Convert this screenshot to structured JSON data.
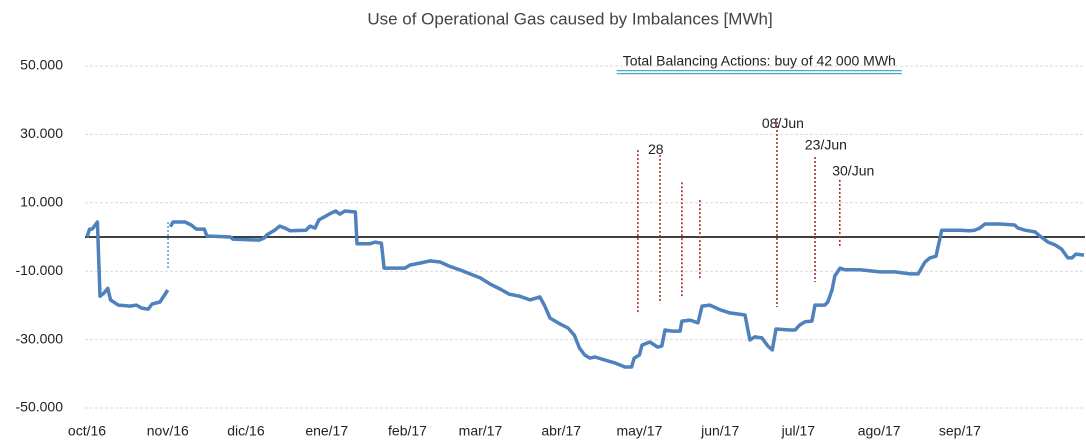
{
  "chart_data": {
    "type": "line",
    "title": "Use of Operational Gas caused by Imbalances [MWh]",
    "color": "#4f81bd",
    "x": [
      0,
      1,
      2,
      4,
      5,
      6.5,
      8,
      9,
      12,
      16.5,
      19,
      21,
      23.5,
      25,
      28,
      31,
      31.5,
      32,
      33,
      37.6,
      40,
      42,
      45,
      46,
      55,
      56,
      66,
      68,
      69,
      72,
      74,
      76,
      78,
      84,
      85.6,
      87.5,
      89,
      93,
      95.5,
      97,
      99,
      103,
      103.6,
      108.6,
      110.5,
      113,
      114,
      122,
      124,
      128,
      131.6,
      135.5,
      139,
      143,
      147,
      151,
      154.6,
      158.5,
      162,
      166,
      170,
      173.8,
      175.7,
      177.7,
      181.5,
      184.6,
      187,
      189,
      191,
      193,
      195,
      198.8,
      202.6,
      206.4,
      209,
      210,
      212,
      213,
      216,
      219,
      220.6,
      221.8,
      224.5,
      227.6,
      228.3,
      231.4,
      234.5,
      236,
      239,
      243,
      246.7,
      252.5,
      254.4,
      256.3,
      259,
      261.3,
      263,
      264.4,
      269.8,
      271.7,
      273.6,
      275.5,
      278.2,
      279.4,
      283.2,
      284.3,
      285.9,
      287,
      289,
      290.9,
      296.6,
      304.3,
      310,
      315.8,
      319,
      321.6,
      323.5,
      325.8,
      328,
      335,
      338.8,
      340.7,
      342.6,
      344.6,
      350.3,
      356,
      357.3,
      360,
      363.8,
      365.7,
      368.8,
      371.5,
      374,
      376.4,
      378,
      379.5,
      382.6
    ],
    "values": [
      0,
      2300,
      2300,
      4400,
      -17300,
      -16400,
      -15000,
      -18400,
      -19900,
      -20200,
      -19900,
      -20800,
      -21100,
      -19600,
      -19000,
      -15500,
      null,
      3000,
      4400,
      4400,
      3500,
      2300,
      2300,
      300,
      0,
      -600,
      -900,
      -300,
      600,
      2000,
      3200,
      2600,
      1800,
      2000,
      3200,
      2600,
      5000,
      6700,
      7600,
      6700,
      7600,
      7300,
      -2000,
      -2000,
      -1500,
      -1800,
      -9100,
      -9100,
      -8200,
      -7600,
      -7000,
      -7300,
      -8500,
      -9600,
      -10800,
      -12000,
      -13700,
      -15200,
      -16700,
      -17300,
      -18400,
      -17500,
      -20200,
      -23700,
      -25400,
      -26600,
      -28700,
      -32500,
      -34500,
      -35400,
      -35100,
      -36000,
      -36800,
      -38000,
      -38000,
      -35400,
      -34500,
      -31600,
      -30700,
      -32200,
      -31900,
      -27200,
      -27500,
      -27500,
      -24600,
      -24300,
      -25100,
      -20200,
      -19900,
      -21300,
      -22200,
      -22800,
      -30100,
      -29200,
      -29500,
      -31900,
      -33000,
      -26900,
      -27200,
      -27200,
      -25700,
      -24800,
      -24600,
      -19900,
      -19900,
      -19000,
      -15500,
      -11400,
      -9100,
      -9600,
      -9600,
      -10200,
      -10200,
      -10800,
      -10800,
      -7300,
      -6100,
      -5600,
      2000,
      2000,
      1800,
      2000,
      2600,
      3800,
      3800,
      3500,
      2600,
      2000,
      1500,
      300,
      -1500,
      -2300,
      -3500,
      -6100,
      -6100,
      -5000,
      -5300
    ],
    "xlim": [
      0,
      383
    ],
    "xticks": [
      {
        "value": 0,
        "label": "oct/16"
      },
      {
        "value": 31,
        "label": "nov/16"
      },
      {
        "value": 61,
        "label": "dic/16"
      },
      {
        "value": 92,
        "label": "ene/17"
      },
      {
        "value": 123,
        "label": "feb/17"
      },
      {
        "value": 151,
        "label": "mar/17"
      },
      {
        "value": 182,
        "label": "abr/17"
      },
      {
        "value": 212,
        "label": "may/17"
      },
      {
        "value": 243,
        "label": "jun/17"
      },
      {
        "value": 273,
        "label": "jul/17"
      },
      {
        "value": 304,
        "label": "ago/17"
      },
      {
        "value": 335,
        "label": "sep/17"
      }
    ],
    "ylim": [
      -50000,
      50000
    ],
    "yticks": [
      {
        "value": -50000,
        "label": "-50.000"
      },
      {
        "value": -30000,
        "label": "-30.000"
      },
      {
        "value": -10000,
        "label": "-10.000"
      },
      {
        "value": 10000,
        "label": "10.000"
      },
      {
        "value": 30000,
        "label": "30.000"
      },
      {
        "value": 50000,
        "label": "50.000"
      }
    ],
    "grid": true,
    "vlines": [
      {
        "x": 31.1,
        "y1": 4400,
        "y2": -9600,
        "color": "#4bacc6"
      },
      {
        "x": 211.4,
        "y1": 25400,
        "y2": -22200,
        "color": "#a0302a"
      },
      {
        "x": 219.9,
        "y1": 24000,
        "y2": -19000,
        "color": "#a0302a"
      },
      {
        "x": 228.3,
        "y1": 16000,
        "y2": -17300,
        "color": "#a0302a"
      },
      {
        "x": 235.2,
        "y1": 10800,
        "y2": -12300,
        "color": "#a0302a"
      },
      {
        "x": 264.8,
        "y1": 34800,
        "y2": -20500,
        "color": "#a0302a"
      },
      {
        "x": 279.4,
        "y1": 23400,
        "y2": -13200,
        "color": "#a0302a"
      },
      {
        "x": 288.9,
        "y1": 16700,
        "y2": -3200,
        "color": "#a0302a"
      }
    ],
    "annotations": [
      {
        "text": "28",
        "x": 215.3,
        "y": 25400
      },
      {
        "text": "08/Jun",
        "x": 259,
        "y": 33000
      },
      {
        "text": "23/Jun",
        "x": 275.5,
        "y": 26600
      },
      {
        "text": "30/Jun",
        "x": 286,
        "y": 19000
      }
    ],
    "note": {
      "text": "Total Balancing Actions: buy of 42 000 MWh",
      "x": 258,
      "y": 51200
    }
  }
}
